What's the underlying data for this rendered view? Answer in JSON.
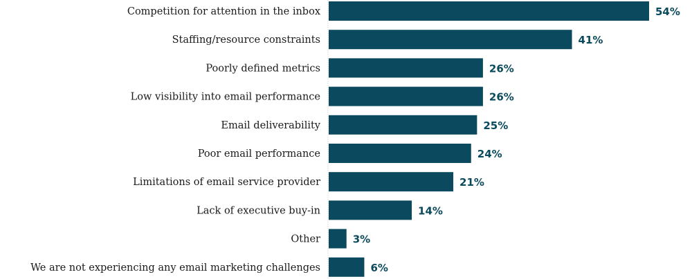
{
  "chart_data": {
    "type": "bar",
    "orientation": "horizontal",
    "categories": [
      "Competition for attention in the inbox",
      "Staffing/resource constraints",
      "Poorly defined metrics",
      "Low visibility into email performance",
      "Email deliverability",
      "Poor email performance",
      "Limitations of email service provider",
      "Lack of executive buy-in",
      "Other",
      "We are not experiencing any email marketing challenges"
    ],
    "values": [
      54,
      41,
      26,
      26,
      25,
      24,
      21,
      14,
      3,
      6
    ],
    "data_labels": [
      "54%",
      "41%",
      "26%",
      "26%",
      "25%",
      "24%",
      "21%",
      "14%",
      "3%",
      "6%"
    ],
    "unit": "%",
    "xlim": [
      0,
      54
    ],
    "grid": false,
    "legend": "none",
    "bar_color": "#0b4a5e",
    "label_color": "#0a4a5c"
  }
}
